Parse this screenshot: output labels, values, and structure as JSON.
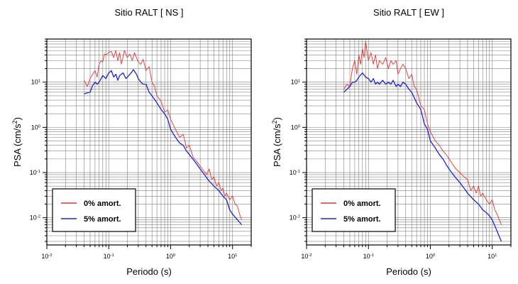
{
  "chart_data": [
    {
      "type": "line",
      "title": "Sitio RALT [ NS ]",
      "xlabel": "Periodo (s)",
      "ylabel": "PSA (cm/s",
      "ylabel_sup": "2",
      "ylabel_close": ")",
      "xscale": "log",
      "yscale": "log",
      "xlim": [
        0.01,
        20
      ],
      "ylim": [
        0.0025,
        90
      ],
      "grid": true,
      "legend_placement": "bottom-left",
      "xticks": [
        {
          "value": 0.01,
          "base": "10",
          "exp": "-2"
        },
        {
          "value": 0.1,
          "base": "10",
          "exp": "-1"
        },
        {
          "value": 1,
          "base": "10",
          "exp": "0"
        },
        {
          "value": 10,
          "base": "10",
          "exp": "1"
        }
      ],
      "yticks": [
        {
          "value": 0.01,
          "base": "10",
          "exp": "-2"
        },
        {
          "value": 0.1,
          "base": "10",
          "exp": "-1"
        },
        {
          "value": 1,
          "base": "10",
          "exp": "0"
        },
        {
          "value": 10,
          "base": "10",
          "exp": "1"
        }
      ],
      "series": [
        {
          "name": "0% amort.",
          "color": "#e8332f",
          "x": [
            0.04,
            0.045,
            0.05,
            0.055,
            0.06,
            0.065,
            0.07,
            0.075,
            0.08,
            0.085,
            0.09,
            0.1,
            0.11,
            0.12,
            0.13,
            0.14,
            0.15,
            0.16,
            0.18,
            0.2,
            0.22,
            0.24,
            0.26,
            0.28,
            0.3,
            0.33,
            0.36,
            0.4,
            0.45,
            0.5,
            0.55,
            0.6,
            0.7,
            0.8,
            0.9,
            1.0,
            1.2,
            1.4,
            1.6,
            1.8,
            2.0,
            2.3,
            2.6,
            3.0,
            3.4,
            3.8,
            4.2,
            4.6,
            5.0,
            5.5,
            6.0,
            6.5,
            7.0,
            7.5,
            8.0,
            9.0,
            10,
            11,
            12,
            13,
            14
          ],
          "y": [
            11,
            8,
            12,
            15,
            18,
            13,
            25,
            30,
            28,
            42,
            40,
            45,
            48,
            35,
            50,
            30,
            45,
            25,
            50,
            35,
            42,
            30,
            45,
            35,
            28,
            25,
            32,
            18,
            22,
            10,
            8,
            5,
            3.8,
            2.2,
            2.4,
            1.5,
            0.9,
            0.6,
            0.7,
            0.35,
            0.4,
            0.22,
            0.18,
            0.14,
            0.11,
            0.09,
            0.12,
            0.07,
            0.08,
            0.05,
            0.06,
            0.04,
            0.045,
            0.03,
            0.035,
            0.025,
            0.03,
            0.02,
            0.018,
            0.012,
            0.009
          ]
        },
        {
          "name": "5% amort.",
          "color": "#1b25d6",
          "x": [
            0.04,
            0.045,
            0.05,
            0.055,
            0.06,
            0.065,
            0.07,
            0.08,
            0.09,
            0.1,
            0.11,
            0.12,
            0.13,
            0.14,
            0.15,
            0.17,
            0.19,
            0.21,
            0.23,
            0.25,
            0.28,
            0.3,
            0.33,
            0.36,
            0.4,
            0.45,
            0.5,
            0.6,
            0.7,
            0.8,
            0.9,
            1.0,
            1.2,
            1.4,
            1.6,
            1.8,
            2.0,
            2.5,
            3.0,
            3.5,
            4.0,
            5.0,
            6.0,
            7.0,
            8.0,
            9.0,
            10,
            12,
            14
          ],
          "y": [
            5.5,
            5.8,
            6.0,
            8.5,
            10,
            9,
            10,
            14,
            12,
            16,
            18,
            13,
            15,
            11,
            14,
            16,
            12,
            14,
            16,
            19,
            15,
            12,
            10,
            9,
            9,
            6,
            5,
            3.5,
            2.5,
            2.0,
            1.5,
            0.9,
            0.6,
            0.45,
            0.4,
            0.3,
            0.25,
            0.17,
            0.12,
            0.09,
            0.07,
            0.05,
            0.04,
            0.03,
            0.025,
            0.015,
            0.012,
            0.009,
            0.007
          ]
        }
      ]
    },
    {
      "type": "line",
      "title": "Sitio RALT [ EW ]",
      "xlabel": "Periodo (s)",
      "ylabel": "PSA (cm/s",
      "ylabel_sup": "2",
      "ylabel_close": ")",
      "xscale": "log",
      "yscale": "log",
      "xlim": [
        0.01,
        20
      ],
      "ylim": [
        0.0025,
        90
      ],
      "grid": true,
      "legend_placement": "bottom-left",
      "xticks": [
        {
          "value": 0.01,
          "base": "10",
          "exp": "-2"
        },
        {
          "value": 0.1,
          "base": "10",
          "exp": "-1"
        },
        {
          "value": 1,
          "base": "10",
          "exp": "0"
        },
        {
          "value": 10,
          "base": "10",
          "exp": "1"
        }
      ],
      "yticks": [
        {
          "value": 0.01,
          "base": "10",
          "exp": "-2"
        },
        {
          "value": 0.1,
          "base": "10",
          "exp": "-1"
        },
        {
          "value": 1,
          "base": "10",
          "exp": "0"
        },
        {
          "value": 10,
          "base": "10",
          "exp": "1"
        }
      ],
      "series": [
        {
          "name": "0% amort.",
          "color": "#e8332f",
          "x": [
            0.04,
            0.045,
            0.05,
            0.055,
            0.06,
            0.065,
            0.07,
            0.075,
            0.08,
            0.085,
            0.09,
            0.1,
            0.11,
            0.12,
            0.13,
            0.14,
            0.15,
            0.17,
            0.19,
            0.21,
            0.23,
            0.25,
            0.28,
            0.3,
            0.33,
            0.36,
            0.4,
            0.45,
            0.5,
            0.55,
            0.6,
            0.7,
            0.8,
            0.9,
            1.0,
            1.2,
            1.4,
            1.6,
            1.8,
            2.0,
            2.3,
            2.6,
            3.0,
            3.5,
            4.0,
            4.5,
            5.0,
            5.5,
            6.0,
            6.5,
            7.0,
            8.0,
            9.0,
            10,
            11,
            12,
            13,
            14
          ],
          "y": [
            7,
            9,
            8,
            20,
            30,
            15,
            40,
            25,
            55,
            35,
            80,
            30,
            45,
            25,
            40,
            20,
            30,
            25,
            35,
            20,
            30,
            25,
            30,
            15,
            20,
            25,
            20,
            12,
            15,
            8,
            7,
            3,
            2.5,
            1.2,
            0.8,
            0.5,
            0.4,
            0.3,
            0.25,
            0.2,
            0.15,
            0.12,
            0.1,
            0.08,
            0.07,
            0.04,
            0.05,
            0.035,
            0.05,
            0.03,
            0.035,
            0.025,
            0.02,
            0.025,
            0.015,
            0.012,
            0.009,
            0.007
          ]
        },
        {
          "name": "5% amort.",
          "color": "#1b25d6",
          "x": [
            0.04,
            0.045,
            0.05,
            0.055,
            0.06,
            0.065,
            0.07,
            0.08,
            0.09,
            0.1,
            0.11,
            0.12,
            0.13,
            0.14,
            0.15,
            0.17,
            0.19,
            0.21,
            0.23,
            0.25,
            0.28,
            0.3,
            0.33,
            0.36,
            0.4,
            0.45,
            0.5,
            0.6,
            0.7,
            0.8,
            0.9,
            1.0,
            1.2,
            1.4,
            1.6,
            1.8,
            2.0,
            2.5,
            3.0,
            3.5,
            4.0,
            5.0,
            6.0,
            7.0,
            8.0,
            9.0,
            10,
            12,
            14
          ],
          "y": [
            6,
            7,
            8,
            10,
            10,
            11,
            13,
            16,
            13,
            12,
            10,
            12,
            9,
            10,
            9,
            11,
            9,
            10,
            9,
            11,
            8,
            9,
            8,
            10,
            9,
            7,
            6,
            3.5,
            2.5,
            1.2,
            0.9,
            0.5,
            0.35,
            0.25,
            0.2,
            0.15,
            0.12,
            0.08,
            0.06,
            0.045,
            0.035,
            0.025,
            0.02,
            0.015,
            0.013,
            0.011,
            0.009,
            0.005,
            0.003
          ]
        }
      ]
    }
  ]
}
